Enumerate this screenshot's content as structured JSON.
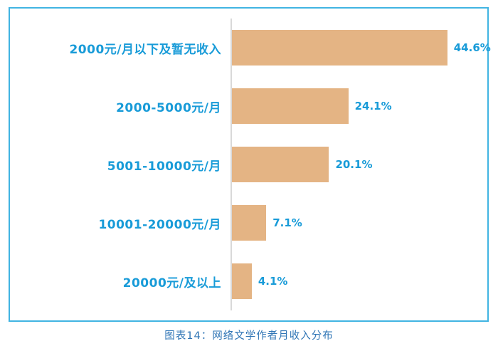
{
  "page": {
    "caption": "图表14：网络文学作者月收入分布"
  },
  "colors": {
    "accent_blue": "#189bd8",
    "caption_blue": "#2e74b5",
    "bar_fill": "#e4b484",
    "frame_border": "#41b4e2",
    "axis_line": "#d9d9d9"
  },
  "chart_data": {
    "type": "bar",
    "orientation": "horizontal",
    "title": "图表14：网络文学作者月收入分布",
    "categories": [
      "2000元/月以下及暂无收入",
      "2000-5000元/月",
      "5001-10000元/月",
      "10001-20000元/月",
      "20000元/及以上"
    ],
    "values": [
      44.6,
      24.1,
      20.1,
      7.1,
      4.1
    ],
    "value_labels": [
      "44.6%",
      "24.1%",
      "20.1%",
      "7.1%",
      "4.1%"
    ],
    "xlabel": "",
    "ylabel": "",
    "xlim": [
      0,
      52
    ],
    "grid": false,
    "legend": "none",
    "value_label_position": "outside-end"
  }
}
